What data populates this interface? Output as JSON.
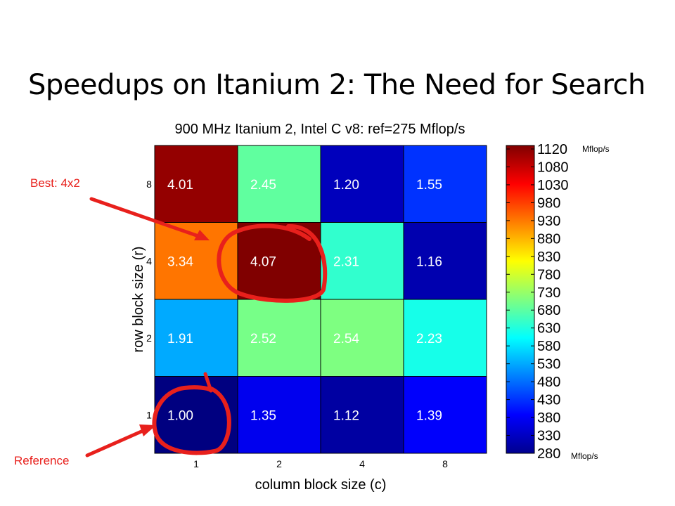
{
  "slide": {
    "title": "Speedups on Itanium 2: The Need for Search"
  },
  "annotations": {
    "best": "Best: 4x2",
    "reference": "Reference",
    "color": "#e8201c"
  },
  "colorbar": {
    "unit_top": "Mflop/s",
    "unit_bottom": "Mflop/s"
  },
  "chart_data": {
    "type": "heatmap",
    "title": "900 MHz Itanium 2, Intel C v8: ref=275 Mflop/s",
    "xlabel": "column block size (c)",
    "ylabel": "row block size (r)",
    "x_categories": [
      "1",
      "2",
      "4",
      "8"
    ],
    "y_categories": [
      "1",
      "2",
      "4",
      "8"
    ],
    "values": [
      [
        1.0,
        1.35,
        1.12,
        1.39
      ],
      [
        1.91,
        2.52,
        2.54,
        2.23
      ],
      [
        3.34,
        4.07,
        2.31,
        1.16
      ],
      [
        4.01,
        2.45,
        1.2,
        1.55
      ]
    ],
    "value_labels": [
      [
        "1.00",
        "1.35",
        "1.12",
        "1.39"
      ],
      [
        "1.91",
        "2.52",
        "2.54",
        "2.23"
      ],
      [
        "3.34",
        "4.07",
        "2.31",
        "1.16"
      ],
      [
        "4.01",
        "2.45",
        "1.20",
        "1.55"
      ]
    ],
    "colorbar": {
      "ticks": [
        "280",
        "330",
        "380",
        "430",
        "480",
        "530",
        "580",
        "630",
        "680",
        "730",
        "780",
        "830",
        "880",
        "930",
        "980",
        "1030",
        "1080",
        "1120"
      ],
      "range": [
        280,
        1120
      ],
      "colormap": "jet"
    },
    "grid": true
  }
}
